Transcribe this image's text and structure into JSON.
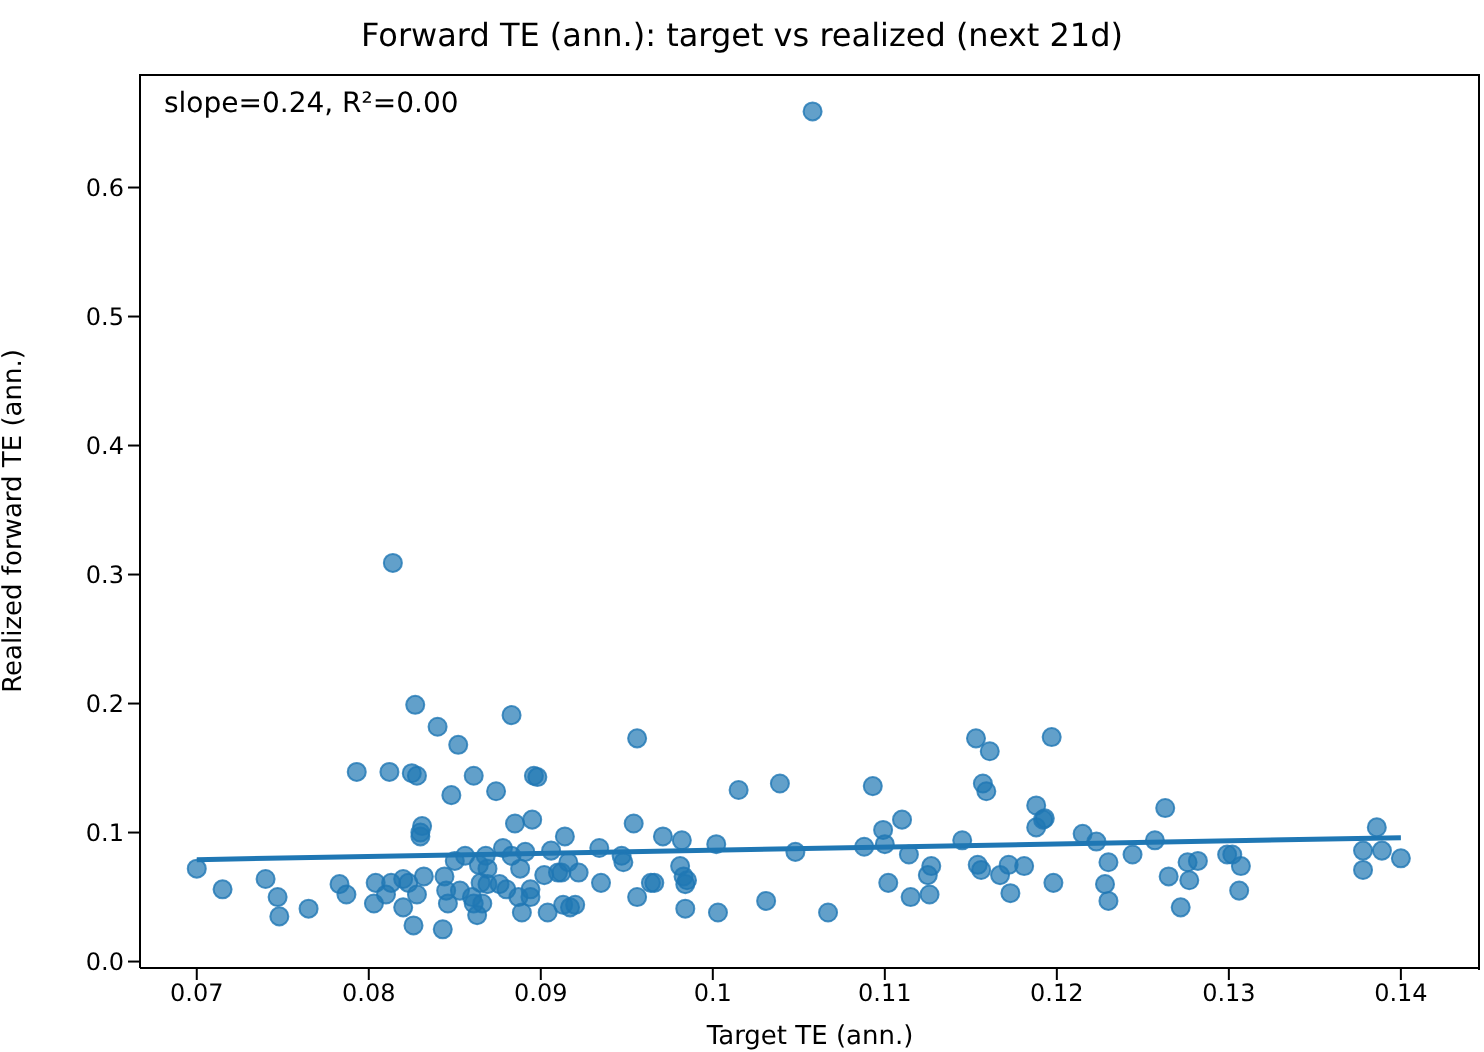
{
  "chart_data": {
    "type": "scatter",
    "title": "Forward TE (ann.): target vs realized (next 21d)",
    "xlabel": "Target TE (ann.)",
    "ylabel": "Realized forward TE (ann.)",
    "annotations": [
      "slope=0.24, R²=0.00"
    ],
    "xlim": [
      0.0667,
      0.1446
    ],
    "xticks": [
      0.07,
      0.08,
      0.09,
      0.1,
      0.11,
      0.12,
      0.13,
      0.14
    ],
    "ylim": [
      -0.005,
      0.688
    ],
    "yticks": [
      {
        "value": 0,
        "label": "0.0"
      },
      0.1,
      0.2,
      0.3,
      0.4,
      0.5,
      0.6
    ],
    "grid": false,
    "legend": false,
    "series": [
      {
        "marker": "circle",
        "color": "#1f77b4",
        "x": [
          0.07,
          0.0715,
          0.074,
          0.0747,
          0.0748,
          0.0765,
          0.0783,
          0.0787,
          0.0793,
          0.0803,
          0.0804,
          0.081,
          0.0812,
          0.0814,
          0.0813,
          0.082,
          0.082,
          0.0823,
          0.0825,
          0.0827,
          0.0828,
          0.0826,
          0.0828,
          0.083,
          0.0831,
          0.083,
          0.0832,
          0.084,
          0.0843,
          0.0844,
          0.0845,
          0.0846,
          0.0848,
          0.085,
          0.0852,
          0.0853,
          0.0856,
          0.086,
          0.0861,
          0.0861,
          0.0863,
          0.0864,
          0.0865,
          0.0866,
          0.0868,
          0.0869,
          0.0869,
          0.0874,
          0.0876,
          0.0878,
          0.088,
          0.0883,
          0.0883,
          0.0885,
          0.0887,
          0.0888,
          0.0889,
          0.0891,
          0.0894,
          0.0894,
          0.0895,
          0.0896,
          0.0898,
          0.0902,
          0.0904,
          0.0906,
          0.091,
          0.0912,
          0.0914,
          0.0913,
          0.0916,
          0.0917,
          0.092,
          0.0922,
          0.0935,
          0.0934,
          0.0947,
          0.0948,
          0.0954,
          0.0956,
          0.0956,
          0.0964,
          0.0966,
          0.0971,
          0.0982,
          0.0981,
          0.0983,
          0.0984,
          0.0984,
          0.0985,
          0.1002,
          0.1003,
          0.1015,
          0.1031,
          0.1039,
          0.1048,
          0.1058,
          0.1067,
          0.1088,
          0.1093,
          0.1099,
          0.11,
          0.1102,
          0.111,
          0.1114,
          0.1115,
          0.1125,
          0.1127,
          0.1126,
          0.1145,
          0.1153,
          0.1154,
          0.1156,
          0.1157,
          0.1159,
          0.1161,
          0.1167,
          0.1172,
          0.1173,
          0.1181,
          0.1188,
          0.1188,
          0.1192,
          0.1193,
          0.1197,
          0.1198,
          0.1215,
          0.1223,
          0.1228,
          0.123,
          0.123,
          0.1244,
          0.1257,
          0.1263,
          0.1265,
          0.1272,
          0.1276,
          0.1277,
          0.1282,
          0.1299,
          0.1302,
          0.1307,
          0.1306,
          0.1378,
          0.1378,
          0.1386,
          0.1389,
          0.14
        ],
        "values": [
          0.072,
          0.056,
          0.064,
          0.05,
          0.035,
          0.041,
          0.06,
          0.052,
          0.147,
          0.045,
          0.061,
          0.052,
          0.147,
          0.309,
          0.061,
          0.064,
          0.042,
          0.061,
          0.146,
          0.199,
          0.144,
          0.028,
          0.052,
          0.097,
          0.105,
          0.1,
          0.066,
          0.182,
          0.025,
          0.066,
          0.055,
          0.045,
          0.129,
          0.078,
          0.168,
          0.055,
          0.082,
          0.05,
          0.144,
          0.045,
          0.036,
          0.075,
          0.061,
          0.045,
          0.082,
          0.06,
          0.072,
          0.132,
          0.06,
          0.088,
          0.056,
          0.191,
          0.082,
          0.107,
          0.05,
          0.072,
          0.038,
          0.085,
          0.056,
          0.05,
          0.11,
          0.144,
          0.143,
          0.067,
          0.038,
          0.086,
          0.069,
          0.069,
          0.097,
          0.044,
          0.077,
          0.042,
          0.044,
          0.069,
          0.061,
          0.088,
          0.082,
          0.077,
          0.107,
          0.173,
          0.05,
          0.061,
          0.061,
          0.097,
          0.094,
          0.074,
          0.066,
          0.06,
          0.041,
          0.063,
          0.091,
          0.038,
          0.133,
          0.047,
          0.138,
          0.085,
          0.659,
          0.038,
          0.089,
          0.136,
          0.102,
          0.091,
          0.061,
          0.11,
          0.083,
          0.05,
          0.067,
          0.074,
          0.052,
          0.094,
          0.173,
          0.075,
          0.071,
          0.138,
          0.132,
          0.163,
          0.067,
          0.075,
          0.053,
          0.074,
          0.104,
          0.121,
          0.11,
          0.111,
          0.174,
          0.061,
          0.099,
          0.093,
          0.06,
          0.047,
          0.077,
          0.083,
          0.094,
          0.119,
          0.066,
          0.042,
          0.077,
          0.063,
          0.078,
          0.083,
          0.083,
          0.074,
          0.055,
          0.086,
          0.071,
          0.104,
          0.086,
          0.08
        ]
      },
      {
        "type": "line",
        "marker": "none",
        "color": "#1f77b4",
        "x": [
          0.07,
          0.14
        ],
        "values": [
          0.079,
          0.096
        ]
      }
    ]
  }
}
